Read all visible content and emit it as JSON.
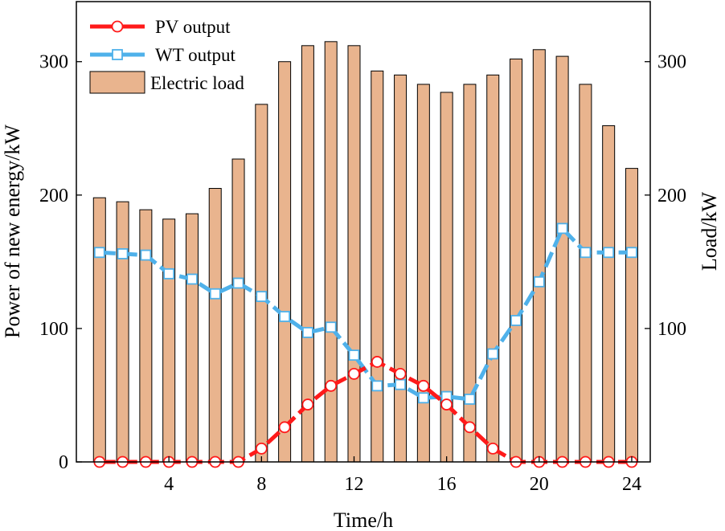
{
  "chart_data": {
    "type": "bar",
    "title": "",
    "xlabel": "Time/h",
    "ylabel_left": "Power of new energy/kW",
    "ylabel_right": "Load/kW",
    "xlim": [
      0,
      24.8
    ],
    "ylim_left": [
      0,
      345
    ],
    "ylim_right": [
      0,
      345
    ],
    "xticks": [
      4,
      8,
      12,
      16,
      20,
      24
    ],
    "yticks_left": [
      0,
      100,
      200,
      300
    ],
    "yticks_right": [
      100,
      200,
      300
    ],
    "grid": false,
    "legend_position": "top-left",
    "colors": {
      "pv": "#ff1a1a",
      "wt": "#4fb1ea",
      "load_fill": "#e9b48e",
      "load_stroke": "#000000"
    },
    "x": [
      1,
      2,
      3,
      4,
      5,
      6,
      7,
      8,
      9,
      10,
      11,
      12,
      13,
      14,
      15,
      16,
      17,
      18,
      19,
      20,
      21,
      22,
      23,
      24
    ],
    "series": [
      {
        "name": "PV output",
        "type": "line",
        "axis": "left",
        "values": [
          0,
          0,
          0,
          0,
          0,
          0,
          0,
          10,
          26,
          43,
          57,
          66,
          75,
          66,
          57,
          43,
          26,
          10,
          0,
          0,
          0,
          0,
          0,
          0
        ]
      },
      {
        "name": "WT output",
        "type": "line",
        "axis": "left",
        "values": [
          157,
          156,
          155,
          141,
          137,
          126,
          134,
          124,
          109,
          97,
          101,
          80,
          57,
          58,
          48,
          49,
          47,
          81,
          106,
          135,
          175,
          157,
          157,
          157
        ]
      },
      {
        "name": "Electric load",
        "type": "bar",
        "axis": "right",
        "values": [
          198,
          195,
          189,
          182,
          186,
          205,
          227,
          268,
          300,
          312,
          315,
          312,
          293,
          290,
          283,
          277,
          283,
          290,
          302,
          309,
          304,
          283,
          252,
          220
        ]
      }
    ]
  }
}
